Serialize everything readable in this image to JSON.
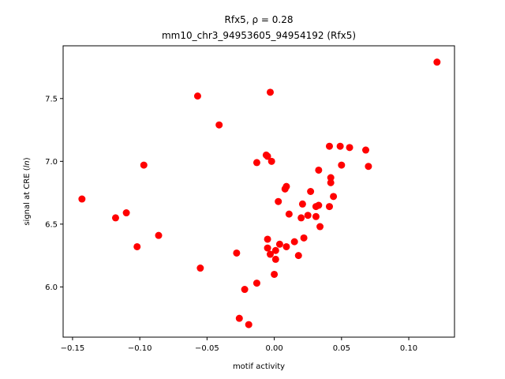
{
  "chart_data": {
    "type": "scatter",
    "title_line1": "Rfx5, ρ = 0.28",
    "title_line2": "mm10_chr3_94953605_94954192 (Rfx5)",
    "xlabel": "motif activity",
    "ylabel": "signal at CRE (ln)",
    "xlim": [
      -0.157,
      0.134
    ],
    "ylim": [
      5.6,
      7.92
    ],
    "x_ticks": [
      -0.15,
      -0.1,
      -0.05,
      0.0,
      0.05,
      0.1
    ],
    "x_tick_labels": [
      "−0.15",
      "−0.10",
      "−0.05",
      "0.00",
      "0.05",
      "0.10"
    ],
    "y_ticks": [
      6.0,
      6.5,
      7.0,
      7.5
    ],
    "y_tick_labels": [
      "6.0",
      "6.5",
      "7.0",
      "7.5"
    ],
    "marker_color": "#ff0000",
    "grid": false,
    "points": [
      {
        "x": -0.143,
        "y": 6.7
      },
      {
        "x": -0.118,
        "y": 6.55
      },
      {
        "x": -0.11,
        "y": 6.59
      },
      {
        "x": -0.102,
        "y": 6.32
      },
      {
        "x": -0.097,
        "y": 6.97
      },
      {
        "x": -0.086,
        "y": 6.41
      },
      {
        "x": -0.057,
        "y": 7.52
      },
      {
        "x": -0.055,
        "y": 6.15
      },
      {
        "x": -0.041,
        "y": 7.29
      },
      {
        "x": -0.028,
        "y": 6.27
      },
      {
        "x": -0.026,
        "y": 5.75
      },
      {
        "x": -0.022,
        "y": 5.98
      },
      {
        "x": -0.019,
        "y": 5.7
      },
      {
        "x": -0.013,
        "y": 6.03
      },
      {
        "x": -0.013,
        "y": 6.99
      },
      {
        "x": -0.006,
        "y": 7.05
      },
      {
        "x": -0.005,
        "y": 7.04
      },
      {
        "x": -0.005,
        "y": 6.38
      },
      {
        "x": -0.005,
        "y": 6.31
      },
      {
        "x": -0.003,
        "y": 7.55
      },
      {
        "x": -0.002,
        "y": 7.0
      },
      {
        "x": -0.003,
        "y": 6.26
      },
      {
        "x": 0.0,
        "y": 6.1
      },
      {
        "x": 0.001,
        "y": 6.29
      },
      {
        "x": 0.001,
        "y": 6.22
      },
      {
        "x": 0.003,
        "y": 6.68
      },
      {
        "x": 0.004,
        "y": 6.34
      },
      {
        "x": 0.008,
        "y": 6.78
      },
      {
        "x": 0.009,
        "y": 6.8
      },
      {
        "x": 0.009,
        "y": 6.32
      },
      {
        "x": 0.011,
        "y": 6.58
      },
      {
        "x": 0.015,
        "y": 6.36
      },
      {
        "x": 0.018,
        "y": 6.25
      },
      {
        "x": 0.02,
        "y": 6.55
      },
      {
        "x": 0.021,
        "y": 6.66
      },
      {
        "x": 0.022,
        "y": 6.39
      },
      {
        "x": 0.025,
        "y": 6.57
      },
      {
        "x": 0.027,
        "y": 6.76
      },
      {
        "x": 0.031,
        "y": 6.56
      },
      {
        "x": 0.031,
        "y": 6.64
      },
      {
        "x": 0.033,
        "y": 6.65
      },
      {
        "x": 0.033,
        "y": 6.93
      },
      {
        "x": 0.034,
        "y": 6.48
      },
      {
        "x": 0.041,
        "y": 7.12
      },
      {
        "x": 0.041,
        "y": 6.64
      },
      {
        "x": 0.042,
        "y": 6.83
      },
      {
        "x": 0.042,
        "y": 6.87
      },
      {
        "x": 0.044,
        "y": 6.72
      },
      {
        "x": 0.049,
        "y": 7.12
      },
      {
        "x": 0.05,
        "y": 6.97
      },
      {
        "x": 0.056,
        "y": 7.11
      },
      {
        "x": 0.068,
        "y": 7.09
      },
      {
        "x": 0.07,
        "y": 6.96
      },
      {
        "x": 0.121,
        "y": 7.79
      }
    ]
  }
}
